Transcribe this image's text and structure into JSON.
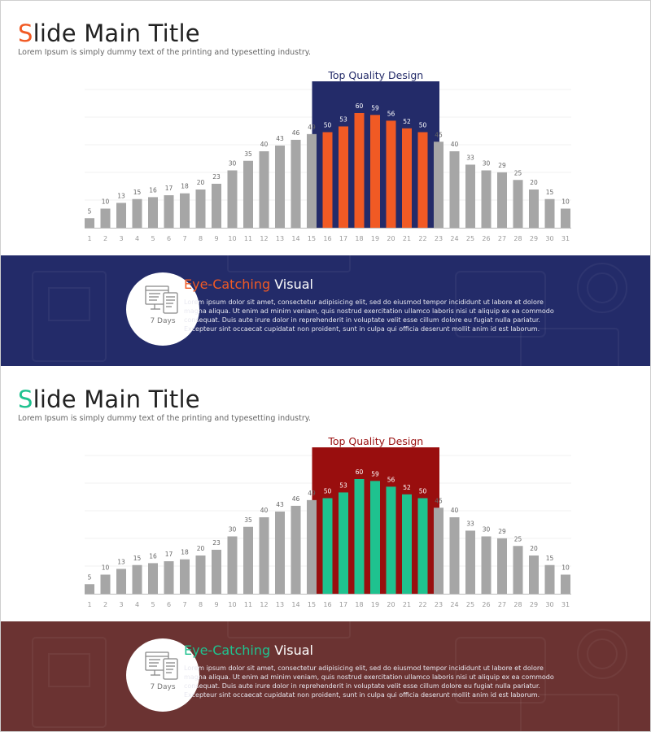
{
  "slides": [
    {
      "title_first": "S",
      "title_rest": "lide Main Title",
      "subtitle": "Lorem Ipsum is simply dummy text of the printing and typesetting industry.",
      "highlight_label": "Top Quality Design",
      "band": {
        "title_highlight": "Eye-Catching",
        "title_rest": " Visual",
        "days": "7 Days",
        "body": "Lorem ipsum dolor sit amet, consectetur adipisicing elit, sed do eiusmod tempor incididunt ut labore et dolore magna aliqua. Ut enim ad minim veniam, quis nostrud exercitation ullamco laboris nisi ut aliquip ex ea commodo consequat. Duis aute irure dolor in reprehenderit in voluptate velit esse cillum dolore eu fugiat nulla pariatur. Excepteur sint occaecat cupidatat non proident, sunt in culpa qui officia deserunt mollit anim id est laborum."
      },
      "colors": {
        "accent": "#f15a24",
        "box": "#232b69",
        "band": "#232b69",
        "bar": "#a6a6a6"
      }
    },
    {
      "title_first": "S",
      "title_rest": "lide Main Title",
      "subtitle": "Lorem Ipsum is simply dummy text of the printing and typesetting industry.",
      "highlight_label": "Top Quality Design",
      "band": {
        "title_highlight": "Eye-Catching",
        "title_rest": " Visual",
        "days": "7 Days",
        "body": "Lorem ipsum dolor sit amet, consectetur adipisicing elit, sed do eiusmod tempor incididunt ut labore et dolore magna aliqua. Ut enim ad minim veniam, quis nostrud exercitation ullamco laboris nisi ut aliquip ex ea commodo consequat. Duis aute irure dolor in reprehenderit in voluptate velit esse cillum dolore eu fugiat nulla pariatur. Excepteur sint occaecat cupidatat non proident, sunt in culpa qui officia deserunt mollit anim id est laborum."
      },
      "colors": {
        "accent": "#1fc28f",
        "box": "#990e0e",
        "band": "#6b3332",
        "bar": "#a6a6a6"
      }
    }
  ],
  "chart_data": [
    {
      "type": "bar",
      "categories": [
        "1",
        "2",
        "3",
        "4",
        "5",
        "6",
        "7",
        "8",
        "9",
        "10",
        "11",
        "12",
        "13",
        "14",
        "15",
        "16",
        "17",
        "18",
        "19",
        "20",
        "21",
        "22",
        "23",
        "24",
        "25",
        "26",
        "27",
        "28",
        "29",
        "30",
        "31"
      ],
      "values": [
        5,
        10,
        13,
        15,
        16,
        17,
        18,
        20,
        23,
        30,
        35,
        40,
        43,
        46,
        49,
        50,
        53,
        60,
        59,
        56,
        52,
        50,
        45,
        40,
        33,
        30,
        29,
        25,
        20,
        15,
        10
      ],
      "highlight_range": [
        "16",
        "22"
      ],
      "title": "",
      "xlabel": "",
      "ylabel": "",
      "ylim": [
        0,
        70
      ],
      "grid": true,
      "legend": "none"
    },
    {
      "type": "bar",
      "categories": [
        "1",
        "2",
        "3",
        "4",
        "5",
        "6",
        "7",
        "8",
        "9",
        "10",
        "11",
        "12",
        "13",
        "14",
        "15",
        "16",
        "17",
        "18",
        "19",
        "20",
        "21",
        "22",
        "23",
        "24",
        "25",
        "26",
        "27",
        "28",
        "29",
        "30",
        "31"
      ],
      "values": [
        5,
        10,
        13,
        15,
        16,
        17,
        18,
        20,
        23,
        30,
        35,
        40,
        43,
        46,
        49,
        50,
        53,
        60,
        59,
        56,
        52,
        50,
        45,
        40,
        33,
        30,
        29,
        25,
        20,
        15,
        10
      ],
      "highlight_range": [
        "16",
        "22"
      ],
      "title": "",
      "xlabel": "",
      "ylabel": "",
      "ylim": [
        0,
        70
      ],
      "grid": true,
      "legend": "none"
    }
  ]
}
